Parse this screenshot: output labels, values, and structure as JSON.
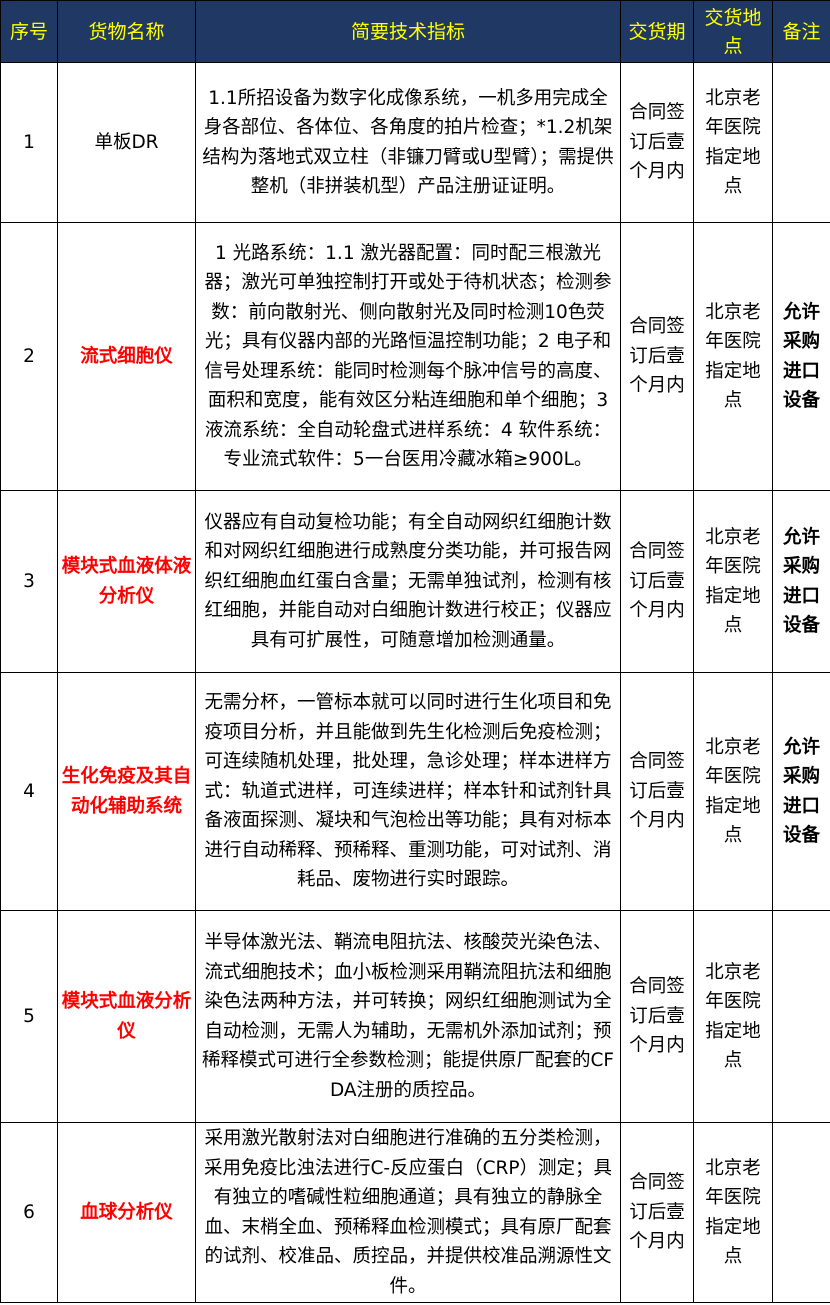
{
  "header": [
    "序号",
    "货物名称",
    "简要技术指标",
    "交货期",
    "交货地点",
    "备注"
  ],
  "colors": {
    "header_bg": "#1f3864",
    "header_text": "#ffff00",
    "highlight": "#ff0000"
  },
  "rows": [
    {
      "no": "1",
      "name": "单板DR",
      "name_highlight": false,
      "spec": "1.1所招设备为数字化成像系统，一机多用完成全身各部位、各体位、各角度的拍片检查；*1.2机架结构为落地式双立柱（非镰刀臂或U型臂）；需提供整机（非拼装机型）产品注册证证明。",
      "delivery": "合同签订后壹个月内",
      "place": "北京老年医院指定地点",
      "note": ""
    },
    {
      "no": "2",
      "name": "流式细胞仪",
      "name_highlight": true,
      "spec": "1 光路系统：1.1 激光器配置：同时配三根激光器；激光可单独控制打开或处于待机状态；检测参数：前向散射光、侧向散射光及同时检测10色荧光；具有仪器内部的光路恒温控制功能；2 电子和信号处理系统：能同时检测每个脉冲信号的高度、面积和宽度，能有效区分粘连细胞和单个细胞；3 液流系统：全自动轮盘式进样系统：4 软件系统：专业流式软件：5一台医用冷藏冰箱≥900L。",
      "delivery": "合同签订后壹个月内",
      "place": "北京老年医院指定地点",
      "note": "允许采购进口设备"
    },
    {
      "no": "3",
      "name": "模块式血液体液分析仪",
      "name_highlight": true,
      "spec": "仪器应有自动复检功能；有全自动网织红细胞计数和对网织红细胞进行成熟度分类功能，并可报告网织红细胞血红蛋白含量；无需单独试剂，检测有核红细胞，并能自动对白细胞计数进行校正；仪器应具有可扩展性，可随意增加检测通量。",
      "delivery": "合同签订后壹个月内",
      "place": "北京老年医院指定地点",
      "note": "允许采购进口设备"
    },
    {
      "no": "4",
      "name": "生化免疫及其自动化辅助系统",
      "name_highlight": true,
      "spec": "无需分杯，一管标本就可以同时进行生化项目和免疫项目分析，并且能做到先生化检测后免疫检测；可连续随机处理，批处理，急诊处理；样本进样方式：轨道式进样，可连续进样；样本针和试剂针具备液面探测、凝块和气泡检出等功能；具有对标本进行自动稀释、预稀释、重测功能，可对试剂、消耗品、废物进行实时跟踪。",
      "delivery": "合同签订后壹个月内",
      "place": "北京老年医院指定地点",
      "note": "允许采购进口设备"
    },
    {
      "no": "5",
      "name": "模块式血液分析仪",
      "name_highlight": true,
      "spec": "半导体激光法、鞘流电阻抗法、核酸荧光染色法、流式细胞技术；血小板检测采用鞘流阻抗法和细胞染色法两种方法，并可转换；网织红细胞测试为全自动检测，无需人为辅助，无需机外添加试剂；预稀释模式可进行全参数检测；能提供原厂配套的CFDA注册的质控品。",
      "delivery": "合同签订后壹个月内",
      "place": "北京老年医院指定地点",
      "note": ""
    },
    {
      "no": "6",
      "name": "血球分析仪",
      "name_highlight": true,
      "spec": "采用激光散射法对白细胞进行准确的五分类检测，采用免疫比浊法进行C-反应蛋白（CRP）测定；具有独立的嗜碱性粒细胞通道；具有独立的静脉全血、末梢全血、预稀释血检测模式；具有原厂配套的试剂、校准品、质控品，并提供校准品溯源性文件。",
      "delivery": "合同签订后壹个月内",
      "place": "北京老年医院指定地点",
      "note": ""
    }
  ]
}
